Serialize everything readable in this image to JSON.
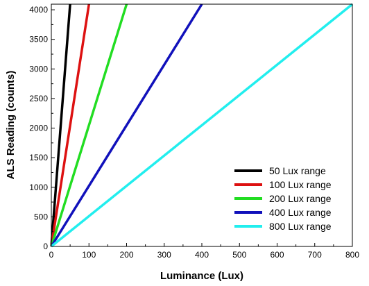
{
  "chart_data": {
    "type": "line",
    "title": "",
    "xlabel": "Luminance (Lux)",
    "ylabel": "ALS Reading (counts)",
    "xlim": [
      0,
      800
    ],
    "ylim": [
      0,
      4095
    ],
    "xticks": [
      0,
      100,
      200,
      300,
      400,
      500,
      600,
      700,
      800
    ],
    "yticks": [
      0,
      500,
      1000,
      1500,
      2000,
      2500,
      3000,
      3500,
      4000
    ],
    "grid": false,
    "legend_position": "bottom-right",
    "series": [
      {
        "name": "50 Lux range",
        "color": "#000000",
        "x": [
          0,
          50
        ],
        "y": [
          0,
          4095
        ]
      },
      {
        "name": "100 Lux range",
        "color": "#dd1111",
        "x": [
          0,
          100
        ],
        "y": [
          0,
          4095
        ]
      },
      {
        "name": "200 Lux range",
        "color": "#22dd22",
        "x": [
          0,
          200
        ],
        "y": [
          0,
          4095
        ]
      },
      {
        "name": "400 Lux range",
        "color": "#1111bb",
        "x": [
          0,
          400
        ],
        "y": [
          0,
          4095
        ]
      },
      {
        "name": "800 Lux range",
        "color": "#22eeee",
        "x": [
          0,
          800
        ],
        "y": [
          0,
          4095
        ]
      }
    ]
  }
}
